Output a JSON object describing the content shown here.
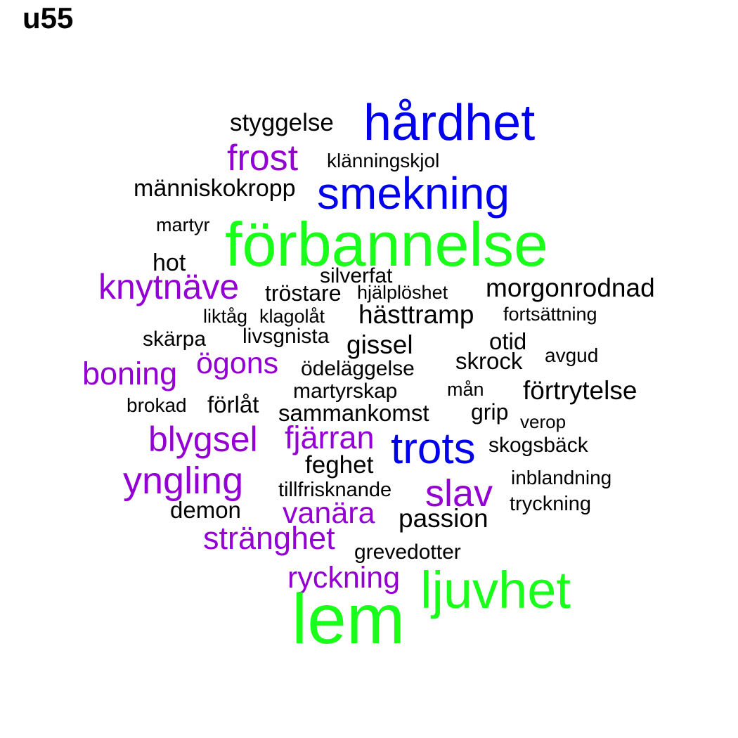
{
  "title": "u55",
  "colors": {
    "black": "#000000",
    "blue": "#0000ee",
    "purple": "#9400d3",
    "green": "#1aff1a"
  },
  "words": [
    {
      "text": "styggelse",
      "color": "black"
    },
    {
      "text": "hårdhet",
      "color": "blue"
    },
    {
      "text": "frost",
      "color": "purple"
    },
    {
      "text": "klänningskjol",
      "color": "black"
    },
    {
      "text": "människokropp",
      "color": "black"
    },
    {
      "text": "smekning",
      "color": "blue"
    },
    {
      "text": "martyr",
      "color": "black"
    },
    {
      "text": "förbannelse",
      "color": "green"
    },
    {
      "text": "hot",
      "color": "black"
    },
    {
      "text": "silverfat",
      "color": "black"
    },
    {
      "text": "knytnäve",
      "color": "purple"
    },
    {
      "text": "tröstare",
      "color": "black"
    },
    {
      "text": "hjälplöshet",
      "color": "black"
    },
    {
      "text": "morgonrodnad",
      "color": "black"
    },
    {
      "text": "liktåg",
      "color": "black"
    },
    {
      "text": "klagolåt",
      "color": "black"
    },
    {
      "text": "hästtramp",
      "color": "black"
    },
    {
      "text": "fortsättning",
      "color": "black"
    },
    {
      "text": "skärpa",
      "color": "black"
    },
    {
      "text": "livsgnista",
      "color": "black"
    },
    {
      "text": "gissel",
      "color": "black"
    },
    {
      "text": "otid",
      "color": "black"
    },
    {
      "text": "ögons",
      "color": "purple"
    },
    {
      "text": "avgud",
      "color": "black"
    },
    {
      "text": "boning",
      "color": "purple"
    },
    {
      "text": "skrock",
      "color": "black"
    },
    {
      "text": "ödeläggelse",
      "color": "black"
    },
    {
      "text": "martyrskap",
      "color": "black"
    },
    {
      "text": "mån",
      "color": "black"
    },
    {
      "text": "förtrytelse",
      "color": "black"
    },
    {
      "text": "brokad",
      "color": "black"
    },
    {
      "text": "förlåt",
      "color": "black"
    },
    {
      "text": "sammankomst",
      "color": "black"
    },
    {
      "text": "grip",
      "color": "black"
    },
    {
      "text": "verop",
      "color": "black"
    },
    {
      "text": "blygsel",
      "color": "purple"
    },
    {
      "text": "fjärran",
      "color": "purple"
    },
    {
      "text": "trots",
      "color": "blue"
    },
    {
      "text": "skogsbäck",
      "color": "black"
    },
    {
      "text": "feghet",
      "color": "black"
    },
    {
      "text": "yngling",
      "color": "purple"
    },
    {
      "text": "inblandning",
      "color": "black"
    },
    {
      "text": "tillfrisknande",
      "color": "black"
    },
    {
      "text": "slav",
      "color": "purple"
    },
    {
      "text": "tryckning",
      "color": "black"
    },
    {
      "text": "demon",
      "color": "black"
    },
    {
      "text": "vanära",
      "color": "purple"
    },
    {
      "text": "passion",
      "color": "black"
    },
    {
      "text": "stränghet",
      "color": "purple"
    },
    {
      "text": "grevedotter",
      "color": "black"
    },
    {
      "text": "ryckning",
      "color": "purple"
    },
    {
      "text": "ljuvhet",
      "color": "green"
    },
    {
      "text": "lem",
      "color": "green"
    }
  ]
}
